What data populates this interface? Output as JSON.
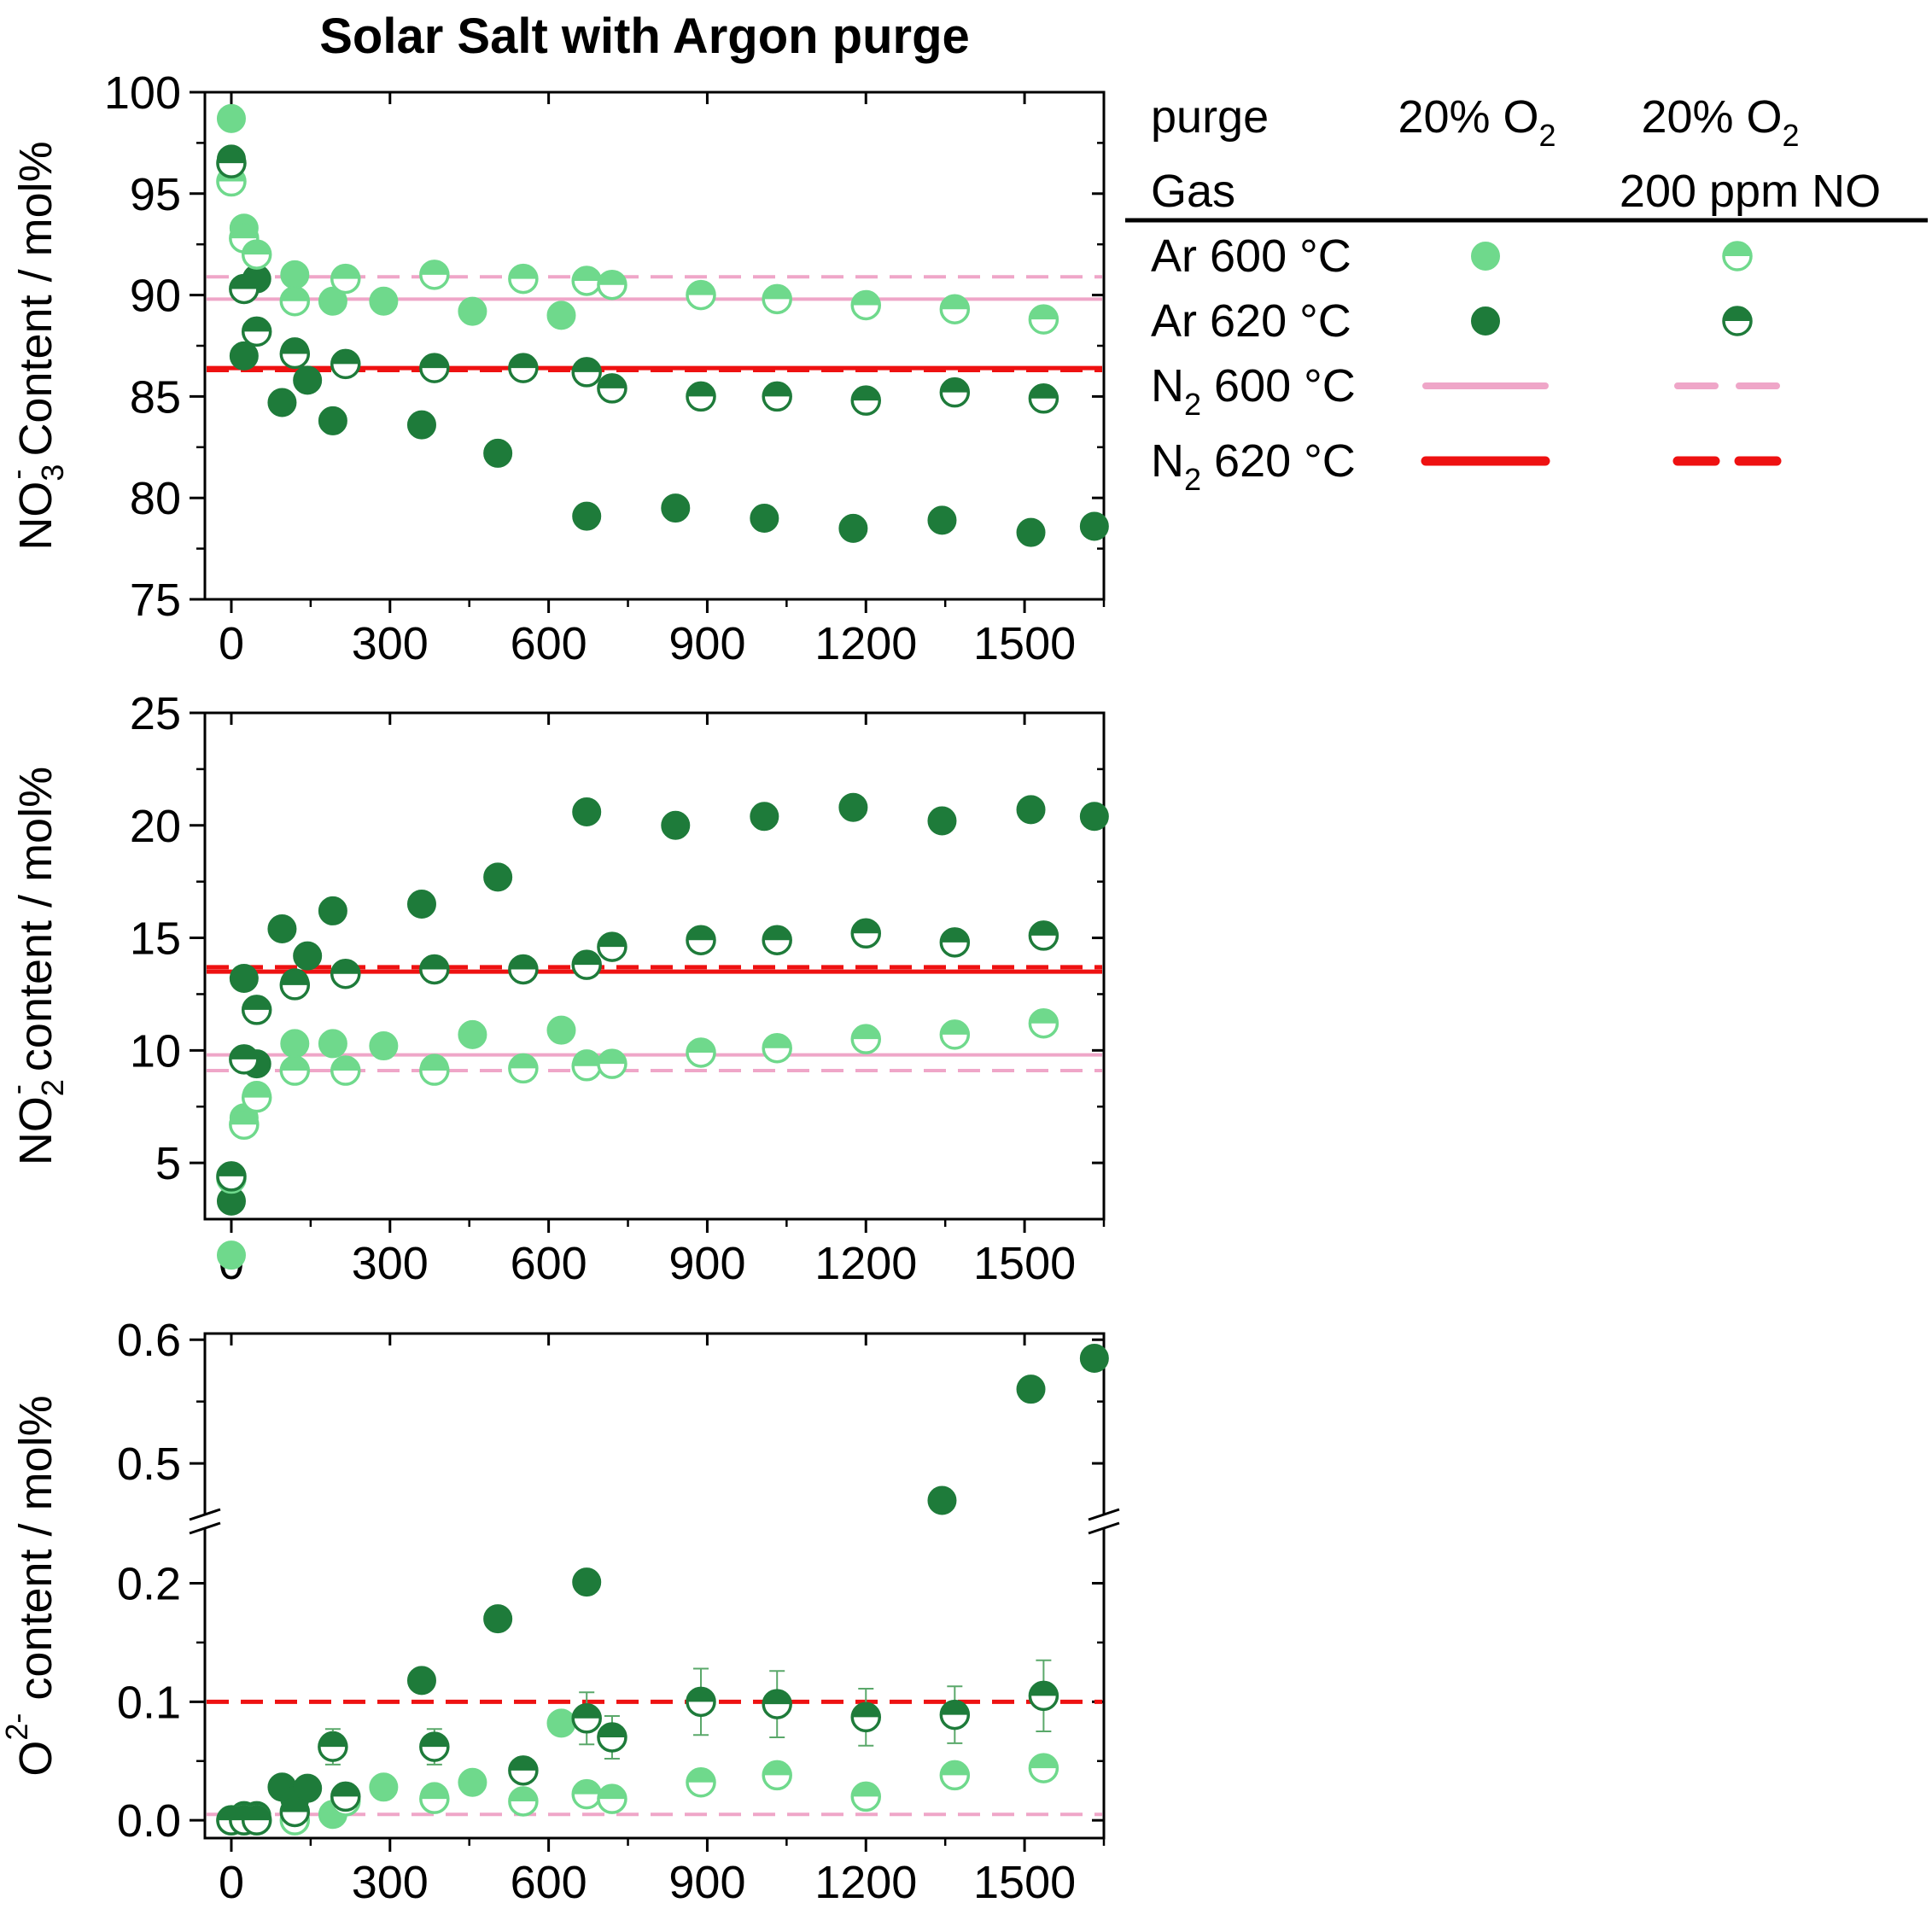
{
  "title": "Solar Salt with Argon purge",
  "colors": {
    "ar600": "#6FD98C",
    "ar620": "#1E7B3A",
    "n2_600": "#EFA6C8",
    "n2_620": "#EE1111"
  },
  "legend": {
    "header_purge": "purge",
    "header_gas": "Gas",
    "col1": {
      "main": "20% O",
      "sub": "2"
    },
    "col2_line1": {
      "main": "20% O",
      "sub": "2"
    },
    "col2_line2": "200 ppm NO",
    "rows": [
      {
        "prefix": "",
        "sub": "",
        "suffix": "Ar 600 °C",
        "key": "ar600"
      },
      {
        "prefix": "",
        "sub": "",
        "suffix": "Ar 620 °C",
        "key": "ar620"
      },
      {
        "prefix": "N",
        "sub": "2",
        "suffix": " 600 °C",
        "key": "n2_600"
      },
      {
        "prefix": "N",
        "sub": "2",
        "suffix": " 620 °C",
        "key": "n2_620"
      }
    ]
  },
  "chart_data": [
    {
      "type": "scatter",
      "panel": "top",
      "ylabel_parts": {
        "a": "NO",
        "sub": "3",
        "sup": "-",
        "b": " Content / mol%"
      },
      "xlim": [
        -50,
        1650
      ],
      "ylim": [
        75,
        100
      ],
      "xticks": [
        0,
        300,
        600,
        900,
        1200,
        1500
      ],
      "yticks": [
        75,
        80,
        85,
        90,
        95,
        100
      ],
      "series": [
        {
          "name": "Ar 600 °C, 20% O2",
          "style": "full",
          "color": "ar600",
          "x": [
            0,
            24,
            48,
            120,
            192,
            288,
            384,
            456,
            624,
            672
          ],
          "y": [
            98.7,
            93.3,
            92,
            91,
            89.7,
            89.7,
            91,
            89.2,
            89,
            90.7
          ]
        },
        {
          "name": "Ar 620 °C, 20% O2",
          "style": "full",
          "color": "ar620",
          "x": [
            0,
            24,
            48,
            96,
            120,
            144,
            192,
            216,
            360,
            504,
            672,
            840,
            1008,
            1176,
            1344,
            1512,
            1632
          ],
          "y": [
            96.7,
            87,
            90.8,
            84.7,
            87.2,
            85.8,
            83.8,
            86.6,
            83.6,
            82.2,
            79.1,
            79.5,
            79,
            78.5,
            78.9,
            78.3,
            78.6
          ]
        },
        {
          "name": "Ar 600 °C, 20% O2 + 200 ppm NO",
          "style": "half",
          "color": "ar600",
          "x": [
            0,
            24,
            48,
            120,
            216,
            384,
            552,
            672,
            720,
            888,
            1032,
            1200,
            1368,
            1536
          ],
          "y": [
            95.6,
            92.8,
            92,
            89.7,
            90.8,
            91,
            90.8,
            90.7,
            90.5,
            90,
            89.8,
            89.5,
            89.3,
            88.8
          ]
        },
        {
          "name": "Ar 620 °C, 20% O2 + 200 ppm NO",
          "style": "half",
          "color": "ar620",
          "x": [
            0,
            24,
            48,
            120,
            216,
            384,
            552,
            672,
            720,
            888,
            1032,
            1200,
            1368,
            1536
          ],
          "y": [
            96.5,
            90.3,
            88.2,
            87.1,
            86.6,
            86.4,
            86.4,
            86.2,
            85.4,
            85,
            85,
            84.8,
            85.2,
            84.9
          ]
        }
      ],
      "hlines": [
        {
          "name": "N2 600 °C, 20% O2",
          "y": 89.8,
          "color": "n2_600",
          "dash": false
        },
        {
          "name": "N2 600 °C, 20% O2 + 200 ppm NO",
          "y": 90.9,
          "color": "n2_600",
          "dash": true
        },
        {
          "name": "N2 620 °C, 20% O2",
          "y": 86.4,
          "color": "n2_620",
          "dash": false
        },
        {
          "name": "N2 620 °C, 20% O2 + 200 ppm NO",
          "y": 86.3,
          "color": "n2_620",
          "dash": true
        }
      ]
    },
    {
      "type": "scatter",
      "panel": "middle",
      "ylabel_parts": {
        "a": "NO",
        "sub": "2",
        "sup": "-",
        "b": " content / mol%"
      },
      "xlim": [
        -50,
        1650
      ],
      "ylim": [
        2.5,
        25
      ],
      "xticks": [
        0,
        300,
        600,
        900,
        1200,
        1500
      ],
      "yticks": [
        5,
        10,
        15,
        20,
        25
      ],
      "series": [
        {
          "name": "Ar 600 °C, 20% O2",
          "style": "full",
          "color": "ar600",
          "x": [
            0,
            24,
            48,
            120,
            192,
            288,
            384,
            456,
            624,
            672
          ],
          "y": [
            0.9,
            7,
            8,
            10.3,
            10.3,
            10.2,
            9.2,
            10.7,
            10.9,
            9.4
          ]
        },
        {
          "name": "Ar 620 °C, 20% O2",
          "style": "full",
          "color": "ar620",
          "x": [
            0,
            24,
            48,
            96,
            120,
            144,
            192,
            216,
            360,
            504,
            672,
            840,
            1008,
            1176,
            1344,
            1512,
            1632
          ],
          "y": [
            3.3,
            13.2,
            9.4,
            15.4,
            13,
            14.2,
            16.2,
            13.4,
            16.5,
            17.7,
            20.6,
            20,
            20.4,
            20.8,
            20.2,
            20.7,
            20.4
          ]
        },
        {
          "name": "Ar 600 °C, 20% O2 + 200 ppm NO",
          "style": "half",
          "color": "ar600",
          "x": [
            0,
            24,
            48,
            120,
            216,
            384,
            552,
            672,
            720,
            888,
            1032,
            1200,
            1368,
            1536
          ],
          "y": [
            4.3,
            6.7,
            7.9,
            9.1,
            9.1,
            9.1,
            9.2,
            9.3,
            9.4,
            9.9,
            10.1,
            10.5,
            10.7,
            11.2
          ]
        },
        {
          "name": "Ar 620 °C, 20% O2 + 200 ppm NO",
          "style": "half",
          "color": "ar620",
          "x": [
            0,
            24,
            48,
            120,
            216,
            384,
            552,
            672,
            720,
            888,
            1032,
            1200,
            1368,
            1536
          ],
          "y": [
            4.4,
            9.6,
            11.8,
            12.9,
            13.4,
            13.6,
            13.6,
            13.8,
            14.6,
            14.9,
            14.9,
            15.2,
            14.8,
            15.1
          ]
        }
      ],
      "hlines": [
        {
          "name": "N2 600 °C, 20% O2",
          "y": 9.8,
          "color": "n2_600",
          "dash": false
        },
        {
          "name": "N2 600 °C, 20% O2 + 200 ppm NO",
          "y": 9.1,
          "color": "n2_600",
          "dash": true
        },
        {
          "name": "N2 620 °C, 20% O2",
          "y": 13.5,
          "color": "n2_620",
          "dash": false
        },
        {
          "name": "N2 620 °C, 20% O2 + 200 ppm NO",
          "y": 13.7,
          "color": "n2_620",
          "dash": true
        }
      ]
    },
    {
      "type": "scatter",
      "panel": "bottom",
      "ylabel_parts": {
        "a": "O",
        "sub": "",
        "sup": "2-",
        "b": " content / mol%"
      },
      "xlim": [
        -50,
        1650
      ],
      "axis_break": {
        "lower": [
          -0.015,
          0.245
        ],
        "upper": [
          0.46,
          0.605
        ]
      },
      "xticks": [
        0,
        300,
        600,
        900,
        1200,
        1500
      ],
      "yticks_lower": [
        {
          "v": 0.0,
          "label": "0.0"
        },
        {
          "v": 0.1,
          "label": "0.1"
        },
        {
          "v": 0.2,
          "label": "0.2"
        }
      ],
      "yticks_upper": [
        {
          "v": 0.5,
          "label": "0.5"
        },
        {
          "v": 0.6,
          "label": "0.6"
        }
      ],
      "series": [
        {
          "name": "Ar 600 °C, 20% O2",
          "style": "full",
          "color": "ar600",
          "x": [
            0,
            24,
            48,
            120,
            192,
            288,
            384,
            456,
            624,
            672
          ],
          "y": [
            0,
            0,
            0,
            0,
            0.005,
            0.028,
            0.02,
            0.032,
            0.082,
            0.022
          ]
        },
        {
          "name": "Ar 620 °C, 20% O2",
          "style": "full",
          "color": "ar620",
          "x": [
            0,
            24,
            48,
            96,
            120,
            144,
            192,
            216,
            360,
            504,
            672,
            1344,
            1512,
            1632
          ],
          "y": [
            0,
            0.004,
            0.004,
            0.028,
            0.018,
            0.027,
            0.063,
            0.02,
            0.118,
            0.17,
            0.201,
            0.47,
            0.56,
            0.585
          ]
        },
        {
          "name": "Ar 600 °C, 20% O2 + 200 ppm NO",
          "style": "half",
          "color": "ar600",
          "x": [
            0,
            24,
            48,
            120,
            216,
            384,
            552,
            672,
            720,
            888,
            1032,
            1200,
            1368,
            1536
          ],
          "y": [
            0,
            0,
            0,
            0,
            0.016,
            0.018,
            0.016,
            0.022,
            0.018,
            0.032,
            0.038,
            0.02,
            0.038,
            0.044
          ],
          "err": [
            0,
            0,
            0,
            0,
            0,
            0,
            0,
            0,
            0,
            0.006,
            0.006,
            0.006,
            0.006,
            0.008
          ]
        },
        {
          "name": "Ar 620 °C, 20% O2 + 200 ppm NO",
          "style": "half",
          "color": "ar620",
          "x": [
            0,
            24,
            48,
            120,
            192,
            216,
            384,
            552,
            672,
            720,
            888,
            1032,
            1200,
            1368,
            1536
          ],
          "y": [
            0,
            0,
            0,
            0.007,
            0.062,
            0.02,
            0.062,
            0.042,
            0.086,
            0.07,
            0.1,
            0.098,
            0.087,
            0.089,
            0.105
          ],
          "err": [
            0,
            0,
            0,
            0,
            0.015,
            0,
            0.015,
            0,
            0.022,
            0.018,
            0.028,
            0.028,
            0.024,
            0.024,
            0.03
          ]
        }
      ],
      "hlines": [
        {
          "name": "N2 620 °C, 20% O2 + 200 ppm NO",
          "y": 0.1,
          "color": "n2_620",
          "dash": true
        },
        {
          "name": "N2 600 °C, 20% O2 + 200 ppm NO",
          "y": 0.005,
          "color": "n2_600",
          "dash": true
        }
      ]
    }
  ]
}
